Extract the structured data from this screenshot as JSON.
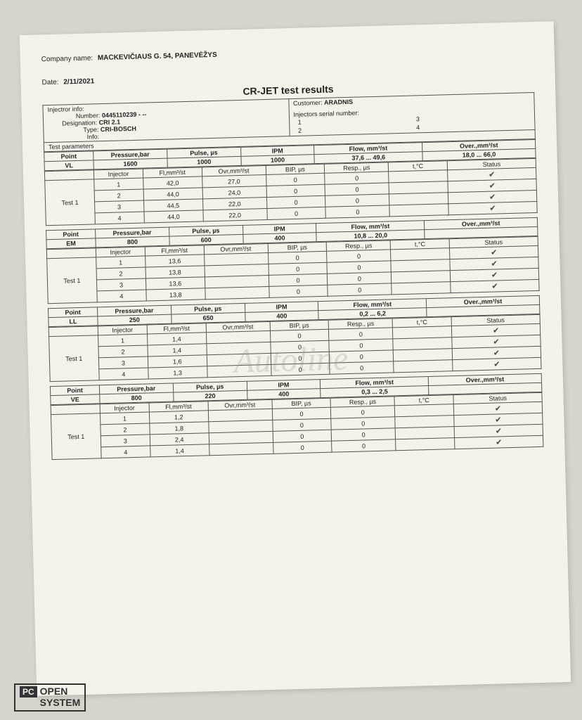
{
  "header": {
    "company_label": "Company name:",
    "company": "MACKEVIČIAUS G. 54, PANEVĖŽYS",
    "date_label": "Date:",
    "date": "2/11/2021",
    "title": "CR-JET test results"
  },
  "injector_info": {
    "heading": "Injectror info:",
    "number_label": "Number:",
    "number": "0445110239 - --",
    "designation_label": "Designation:",
    "designation": "CRI 2.1",
    "type_label": "Type:",
    "type": "CRI-BOSCH",
    "info_label": "Info:",
    "info": ""
  },
  "customer_info": {
    "customer_label": "Customer:",
    "customer": "ARADNIS",
    "serial_label": "Injectors serial number:",
    "n1": "1",
    "n2": "2",
    "n3": "3",
    "n4": "4"
  },
  "test_params_label": "Test parameters",
  "columns": {
    "point": "Point",
    "pressure": "Pressure,bar",
    "pulse": "Pulse, µs",
    "ipm": "IPM",
    "flow": "Flow, mm³/st",
    "over": "Over.,mm³/st",
    "injector": "Injector",
    "fl": "Fl,mm³/st",
    "ovr": "Ovr,mm³/st",
    "bip": "BIP, µs",
    "resp": "Resp., µs",
    "t": "t,°C",
    "status": "Status",
    "test1": "Test 1"
  },
  "tests": [
    {
      "point": "VL",
      "pressure": "1600",
      "pulse": "1000",
      "ipm": "1000",
      "flow": "37,6 ... 49,6",
      "over": "18,0 ... 66,0",
      "rows": [
        {
          "inj": "1",
          "fl": "42,0",
          "ovr": "27,0",
          "bip": "0",
          "resp": "0",
          "t": "",
          "status": "✔"
        },
        {
          "inj": "2",
          "fl": "44,0",
          "ovr": "24,0",
          "bip": "0",
          "resp": "0",
          "t": "",
          "status": "✔"
        },
        {
          "inj": "3",
          "fl": "44,5",
          "ovr": "22,0",
          "bip": "0",
          "resp": "0",
          "t": "",
          "status": "✔"
        },
        {
          "inj": "4",
          "fl": "44,0",
          "ovr": "22,0",
          "bip": "0",
          "resp": "0",
          "t": "",
          "status": "✔"
        }
      ]
    },
    {
      "point": "EM",
      "pressure": "800",
      "pulse": "600",
      "ipm": "400",
      "flow": "10,8 ... 20,0",
      "over": "",
      "rows": [
        {
          "inj": "1",
          "fl": "13,6",
          "ovr": "",
          "bip": "0",
          "resp": "0",
          "t": "",
          "status": "✔"
        },
        {
          "inj": "2",
          "fl": "13,8",
          "ovr": "",
          "bip": "0",
          "resp": "0",
          "t": "",
          "status": "✔"
        },
        {
          "inj": "3",
          "fl": "13,6",
          "ovr": "",
          "bip": "0",
          "resp": "0",
          "t": "",
          "status": "✔"
        },
        {
          "inj": "4",
          "fl": "13,8",
          "ovr": "",
          "bip": "0",
          "resp": "0",
          "t": "",
          "status": "✔"
        }
      ]
    },
    {
      "point": "LL",
      "pressure": "250",
      "pulse": "650",
      "ipm": "400",
      "flow": "0,2 ... 6,2",
      "over": "",
      "rows": [
        {
          "inj": "1",
          "fl": "1,4",
          "ovr": "",
          "bip": "0",
          "resp": "0",
          "t": "",
          "status": "✔"
        },
        {
          "inj": "2",
          "fl": "1,4",
          "ovr": "",
          "bip": "0",
          "resp": "0",
          "t": "",
          "status": "✔"
        },
        {
          "inj": "3",
          "fl": "1,6",
          "ovr": "",
          "bip": "0",
          "resp": "0",
          "t": "",
          "status": "✔"
        },
        {
          "inj": "4",
          "fl": "1,3",
          "ovr": "",
          "bip": "0",
          "resp": "0",
          "t": "",
          "status": "✔"
        }
      ]
    },
    {
      "point": "VE",
      "pressure": "800",
      "pulse": "220",
      "ipm": "400",
      "flow": "0,3 ... 2,5",
      "over": "",
      "rows": [
        {
          "inj": "1",
          "fl": "1,2",
          "ovr": "",
          "bip": "0",
          "resp": "0",
          "t": "",
          "status": "✔"
        },
        {
          "inj": "2",
          "fl": "1,8",
          "ovr": "",
          "bip": "0",
          "resp": "0",
          "t": "",
          "status": "✔"
        },
        {
          "inj": "3",
          "fl": "2,4",
          "ovr": "",
          "bip": "0",
          "resp": "0",
          "t": "",
          "status": "✔"
        },
        {
          "inj": "4",
          "fl": "1,4",
          "ovr": "",
          "bip": "0",
          "resp": "0",
          "t": "",
          "status": "✔"
        }
      ]
    }
  ],
  "watermark": "Autoline",
  "logo": {
    "pc": "PC",
    "text1": "OPEN",
    "text2": "SYSTEM"
  }
}
